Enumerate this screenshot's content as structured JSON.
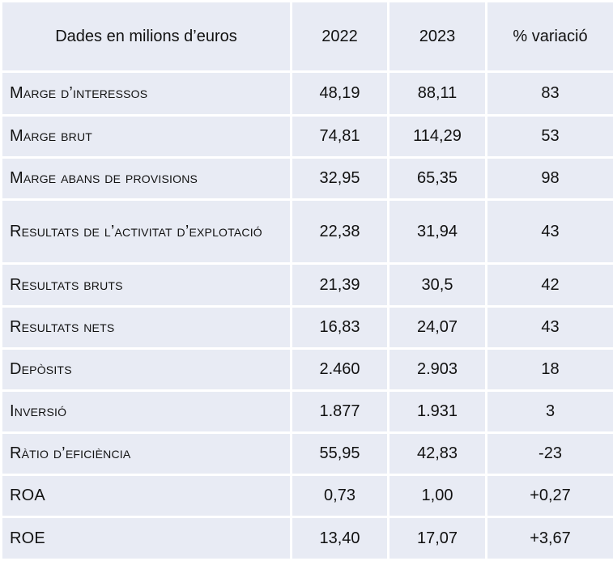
{
  "header": {
    "label": "Dades en milions d’euros",
    "col_2022": "2022",
    "col_2023": "2023",
    "col_var": "% variació"
  },
  "rows": [
    {
      "label": "Marge d’interessos",
      "y2022": "48,19",
      "y2023": "88,11",
      "var": "83"
    },
    {
      "label": "Marge brut",
      "y2022": "74,81",
      "y2023": "114,29",
      "var": "53"
    },
    {
      "label": "Marge abans de provisions",
      "y2022": "32,95",
      "y2023": "65,35",
      "var": "98"
    },
    {
      "label": "Resultats de l’activitat d’explotació",
      "y2022": "22,38",
      "y2023": "31,94",
      "var": "43"
    },
    {
      "label": "Resultats bruts",
      "y2022": "21,39",
      "y2023": "30,5",
      "var": "42"
    },
    {
      "label": "Resultats nets",
      "y2022": "16,83",
      "y2023": "24,07",
      "var": "43"
    },
    {
      "label": "Depòsits",
      "y2022": "2.460",
      "y2023": "2.903",
      "var": "18"
    },
    {
      "label": "Inversió",
      "y2022": "1.877",
      "y2023": "1.931",
      "var": "3"
    },
    {
      "label": "Ràtio d’eficiència",
      "y2022": "55,95",
      "y2023": "42,83",
      "var": "-23"
    },
    {
      "label": "ROA",
      "y2022": "0,73",
      "y2023": "1,00",
      "var": "+0,27"
    },
    {
      "label": "ROE",
      "y2022": "13,40",
      "y2023": "17,07",
      "var": "+3,67"
    }
  ]
}
